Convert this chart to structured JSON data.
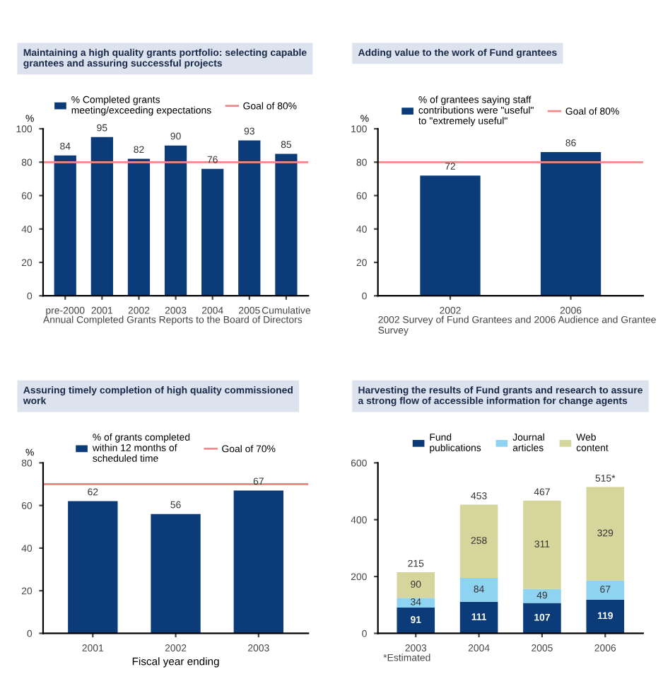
{
  "chart_data": [
    {
      "type": "bar",
      "title": "Maintaining a high quality grants portfolio: selecting capable grantees and assuring successful projects",
      "ylabel": "%",
      "categories": [
        "pre-2000",
        "2001",
        "2002",
        "2003",
        "2004",
        "2005",
        "Cumulative"
      ],
      "series": [
        {
          "name": "% Completed grants\nmeeting/exceeding expectations",
          "color": "#0b3b78",
          "values": [
            84,
            95,
            82,
            90,
            76,
            93,
            85
          ]
        }
      ],
      "ylim": [
        0,
        100
      ],
      "yticks": [
        0,
        20,
        40,
        60,
        80,
        100
      ],
      "data_labels": true,
      "legend": "top",
      "ref_lines": [
        {
          "axis": "y",
          "value": 80,
          "label": "Goal of 80%",
          "color": "#f08a8a"
        }
      ],
      "annotations": [
        "Annual Completed Grants Reports to the Board of Directors"
      ]
    },
    {
      "type": "bar",
      "title": "Adding value to the work of Fund grantees",
      "ylabel": "%",
      "categories": [
        "2002",
        "2006"
      ],
      "series": [
        {
          "name": "% of grantees saying staff\ncontributions were \"useful\"\nto \"extremely useful\"",
          "color": "#0b3b78",
          "values": [
            72,
            86
          ]
        }
      ],
      "ylim": [
        0,
        100
      ],
      "yticks": [
        0,
        20,
        40,
        60,
        80,
        100
      ],
      "data_labels": true,
      "legend": "top",
      "ref_lines": [
        {
          "axis": "y",
          "value": 80,
          "label": "Goal of 80%",
          "color": "#f08a8a"
        }
      ],
      "annotations": [
        "2002 Survey of Fund Grantees and 2006 Audience and Grantee Survey"
      ]
    },
    {
      "type": "bar",
      "title": "Assuring timely completion of high quality commissioned work",
      "ylabel": "%",
      "xlabel": "Fiscal year ending",
      "categories": [
        "2001",
        "2002",
        "2003"
      ],
      "series": [
        {
          "name": "% of grants completed\nwithin 12 months of\nscheduled time",
          "color": "#0b3b78",
          "values": [
            62,
            56,
            67
          ]
        }
      ],
      "ylim": [
        0,
        80
      ],
      "yticks": [
        0,
        20,
        40,
        60,
        80
      ],
      "data_labels": true,
      "legend": "top",
      "ref_lines": [
        {
          "axis": "y",
          "value": 70,
          "label": "Goal of 70%",
          "color": "#f08a8a"
        }
      ]
    },
    {
      "type": "bar",
      "stacked": true,
      "title": "Harvesting the results of Fund grants and research to assure a strong flow of accessible information for change agents",
      "categories": [
        "2003",
        "2004",
        "2005",
        "2006"
      ],
      "series": [
        {
          "name": "Fund\npublications",
          "color": "#0b3b78",
          "values": [
            91,
            111,
            107,
            119
          ]
        },
        {
          "name": "Journal\narticles",
          "color": "#8fd3f2",
          "values": [
            34,
            84,
            49,
            67
          ]
        },
        {
          "name": "Web\ncontent",
          "color": "#d6d69c",
          "values": [
            90,
            258,
            311,
            329
          ]
        }
      ],
      "totals": [
        "215",
        "453",
        "467",
        "515*"
      ],
      "ylim": [
        0,
        600
      ],
      "yticks": [
        0,
        200,
        400,
        600
      ],
      "data_labels": true,
      "legend": "top",
      "annotations": [
        "*Estimated"
      ]
    }
  ]
}
